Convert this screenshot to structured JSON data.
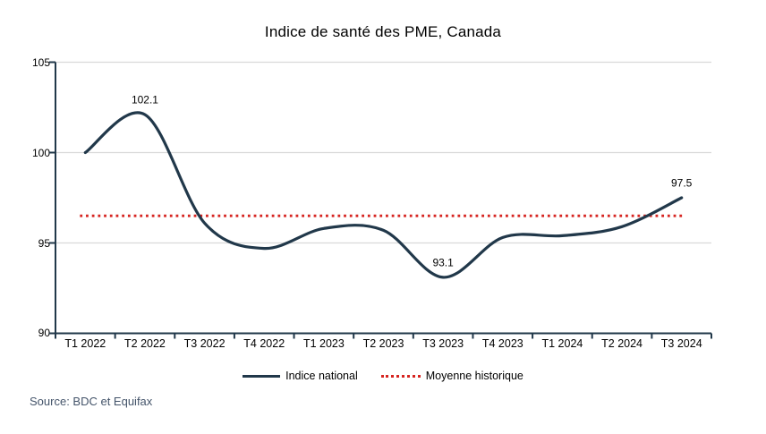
{
  "chart_data": {
    "type": "line",
    "title": "Indice de santé des PME, Canada",
    "categories": [
      "T1 2022",
      "T2 2022",
      "T3 2022",
      "T4 2022",
      "T1 2023",
      "T2 2023",
      "T3 2023",
      "T4 2023",
      "T1 2024",
      "T2 2024",
      "T3 2024"
    ],
    "series": [
      {
        "name": "Indice national",
        "color": "#21384a",
        "style": "solid-smooth",
        "values": [
          100.0,
          102.1,
          96.1,
          94.7,
          95.8,
          95.7,
          93.1,
          95.3,
          95.4,
          95.9,
          97.5
        ]
      },
      {
        "name": "Moyenne historique",
        "color": "#d62420",
        "style": "dotted",
        "value": 96.5
      }
    ],
    "annotations": [
      {
        "index": 1,
        "label": "102.1"
      },
      {
        "index": 6,
        "label": "93.1"
      },
      {
        "index": 10,
        "label": "97.5"
      }
    ],
    "ylim": [
      90,
      105
    ],
    "yticks": [
      "105",
      "100",
      "95",
      "90"
    ],
    "grid": "horizontal",
    "legend_position": "bottom",
    "source": "Source: BDC et Equifax",
    "colors": {
      "grid": "#d9d9d9",
      "axis": "#21384a",
      "text": "#000000",
      "source_text": "#44546a"
    }
  }
}
